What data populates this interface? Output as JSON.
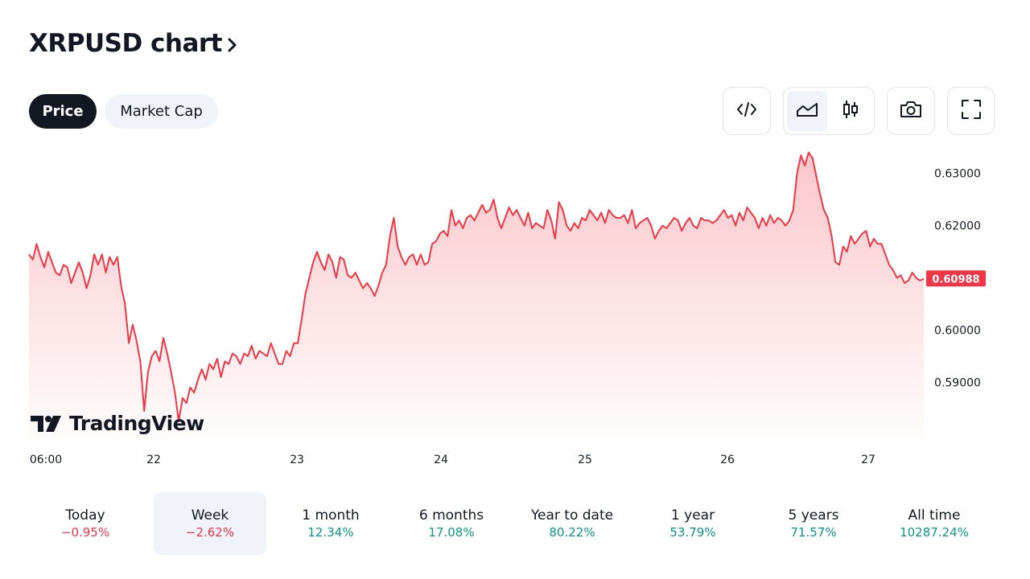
{
  "header": {
    "title": "XRPUSD chart"
  },
  "tabs": [
    {
      "label": "Price",
      "active": true
    },
    {
      "label": "Market Cap",
      "active": false
    }
  ],
  "toolbar": {
    "embed_icon": "code-icon",
    "area_icon": "area-chart-icon",
    "candle_icon": "candles-icon",
    "snapshot_icon": "camera-icon",
    "fullscreen_icon": "fullscreen-icon",
    "active_chart_type": "area"
  },
  "colors": {
    "line": "#f23645",
    "positive": "#089981",
    "negative": "#f23645",
    "accent_dark": "#131722"
  },
  "watermark": "TradingView",
  "chart_data": {
    "type": "area",
    "x_ticks": [
      "06:00",
      "22",
      "23",
      "24",
      "25",
      "26",
      "27"
    ],
    "y_ticks": [
      "0.63000",
      "0.62000",
      "0.60000",
      "0.59000"
    ],
    "ylim": [
      0.5785,
      0.6355
    ],
    "last_price": "0.60988",
    "grid": false,
    "series": [
      {
        "values": [
          0.6145,
          0.6135,
          0.6165,
          0.614,
          0.612,
          0.615,
          0.613,
          0.611,
          0.6105,
          0.6125,
          0.612,
          0.609,
          0.611,
          0.613,
          0.611,
          0.608,
          0.6105,
          0.6145,
          0.6125,
          0.6145,
          0.611,
          0.614,
          0.6125,
          0.614,
          0.6085,
          0.605,
          0.5975,
          0.601,
          0.598,
          0.594,
          0.5845,
          0.592,
          0.595,
          0.596,
          0.594,
          0.5985,
          0.5955,
          0.592,
          0.588,
          0.5825,
          0.587,
          0.586,
          0.589,
          0.588,
          0.5905,
          0.5925,
          0.5905,
          0.5935,
          0.5925,
          0.5945,
          0.591,
          0.594,
          0.5935,
          0.5955,
          0.595,
          0.5935,
          0.5955,
          0.595,
          0.597,
          0.5945,
          0.596,
          0.5955,
          0.595,
          0.5975,
          0.5955,
          0.5935,
          0.5935,
          0.596,
          0.595,
          0.5975,
          0.5975,
          0.602,
          0.607,
          0.61,
          0.613,
          0.615,
          0.613,
          0.6115,
          0.6145,
          0.613,
          0.61,
          0.614,
          0.6135,
          0.6105,
          0.61,
          0.611,
          0.6095,
          0.608,
          0.609,
          0.608,
          0.6065,
          0.6085,
          0.611,
          0.6125,
          0.618,
          0.6215,
          0.616,
          0.614,
          0.6125,
          0.614,
          0.6145,
          0.6125,
          0.6145,
          0.6125,
          0.613,
          0.6165,
          0.617,
          0.6185,
          0.619,
          0.618,
          0.623,
          0.62,
          0.621,
          0.6195,
          0.6215,
          0.622,
          0.621,
          0.6225,
          0.624,
          0.6225,
          0.623,
          0.625,
          0.6215,
          0.6195,
          0.6215,
          0.6235,
          0.622,
          0.623,
          0.6215,
          0.62,
          0.6225,
          0.6195,
          0.6205,
          0.62,
          0.6195,
          0.623,
          0.621,
          0.6175,
          0.6245,
          0.623,
          0.62,
          0.619,
          0.6205,
          0.6195,
          0.6215,
          0.621,
          0.623,
          0.622,
          0.621,
          0.6225,
          0.6205,
          0.623,
          0.622,
          0.6215,
          0.6215,
          0.622,
          0.6205,
          0.623,
          0.6195,
          0.6205,
          0.621,
          0.6215,
          0.62,
          0.6175,
          0.619,
          0.62,
          0.6195,
          0.6205,
          0.6215,
          0.621,
          0.619,
          0.6205,
          0.6215,
          0.62,
          0.6195,
          0.6215,
          0.621,
          0.621,
          0.6205,
          0.621,
          0.622,
          0.623,
          0.6215,
          0.622,
          0.62,
          0.6225,
          0.621,
          0.6235,
          0.6225,
          0.6215,
          0.6195,
          0.6215,
          0.62,
          0.622,
          0.6205,
          0.6215,
          0.621,
          0.62,
          0.621,
          0.623,
          0.63,
          0.6335,
          0.6315,
          0.634,
          0.633,
          0.6295,
          0.626,
          0.623,
          0.6215,
          0.618,
          0.613,
          0.6125,
          0.616,
          0.615,
          0.618,
          0.6165,
          0.6175,
          0.6185,
          0.619,
          0.616,
          0.6175,
          0.6165,
          0.6165,
          0.6145,
          0.6125,
          0.6115,
          0.61,
          0.6105,
          0.609,
          0.6095,
          0.611,
          0.61,
          0.6095,
          0.6098
        ]
      }
    ]
  },
  "periods": [
    {
      "label": "Today",
      "change": "−0.95%",
      "sign": "neg",
      "active": false
    },
    {
      "label": "Week",
      "change": "−2.62%",
      "sign": "neg",
      "active": true
    },
    {
      "label": "1 month",
      "change": "12.34%",
      "sign": "pos",
      "active": false
    },
    {
      "label": "6 months",
      "change": "17.08%",
      "sign": "pos",
      "active": false
    },
    {
      "label": "Year to date",
      "change": "80.22%",
      "sign": "pos",
      "active": false
    },
    {
      "label": "1 year",
      "change": "53.79%",
      "sign": "pos",
      "active": false
    },
    {
      "label": "5 years",
      "change": "71.57%",
      "sign": "pos",
      "active": false
    },
    {
      "label": "All time",
      "change": "10287.24%",
      "sign": "pos",
      "active": false
    }
  ]
}
